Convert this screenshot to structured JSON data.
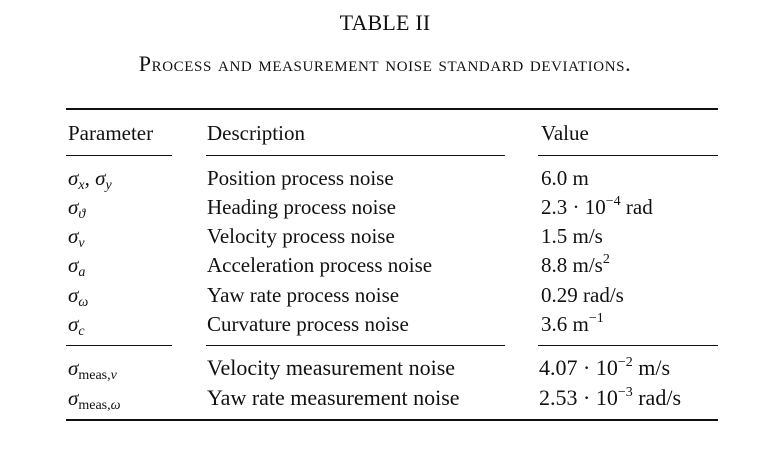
{
  "table": {
    "label": "TABLE II",
    "caption": "Process and measurement noise standard deviations.",
    "headers": {
      "parameter": "Parameter",
      "description": "Description",
      "value": "Value"
    },
    "process_rows": [
      {
        "symbol": "σ",
        "subscript": "x",
        "symbol2": "σ",
        "subscript2": "y",
        "description": "Position process noise",
        "value": "6.0 m"
      },
      {
        "symbol": "σ",
        "subscript": "ϑ",
        "description": "Heading process noise",
        "value_mantissa": "2.3 · 10",
        "value_exponent": "−4",
        "value_unit": " rad"
      },
      {
        "symbol": "σ",
        "subscript": "v",
        "description": "Velocity process noise",
        "value": "1.5 m/s"
      },
      {
        "symbol": "σ",
        "subscript": "a",
        "description": "Acceleration process noise",
        "value_mantissa": "8.8 m/s",
        "value_exponent": "2"
      },
      {
        "symbol": "σ",
        "subscript": "ω",
        "description": "Yaw rate process noise",
        "value": "0.29 rad/s"
      },
      {
        "symbol": "σ",
        "subscript": "c",
        "description": "Curvature process noise",
        "value_mantissa": "3.6 m",
        "value_exponent": "−1"
      }
    ],
    "measurement_rows": [
      {
        "symbol": "σ",
        "subscript_text": "meas,",
        "subscript_var": "v",
        "description": "Velocity measurement noise",
        "value_mantissa": "4.07 · 10",
        "value_exponent": "−2",
        "value_unit": " m/s"
      },
      {
        "symbol": "σ",
        "subscript_text": "meas,",
        "subscript_var": "ω",
        "description": "Yaw rate measurement noise",
        "value_mantissa": "2.53 · 10",
        "value_exponent": "−3",
        "value_unit": " rad/s"
      }
    ]
  }
}
